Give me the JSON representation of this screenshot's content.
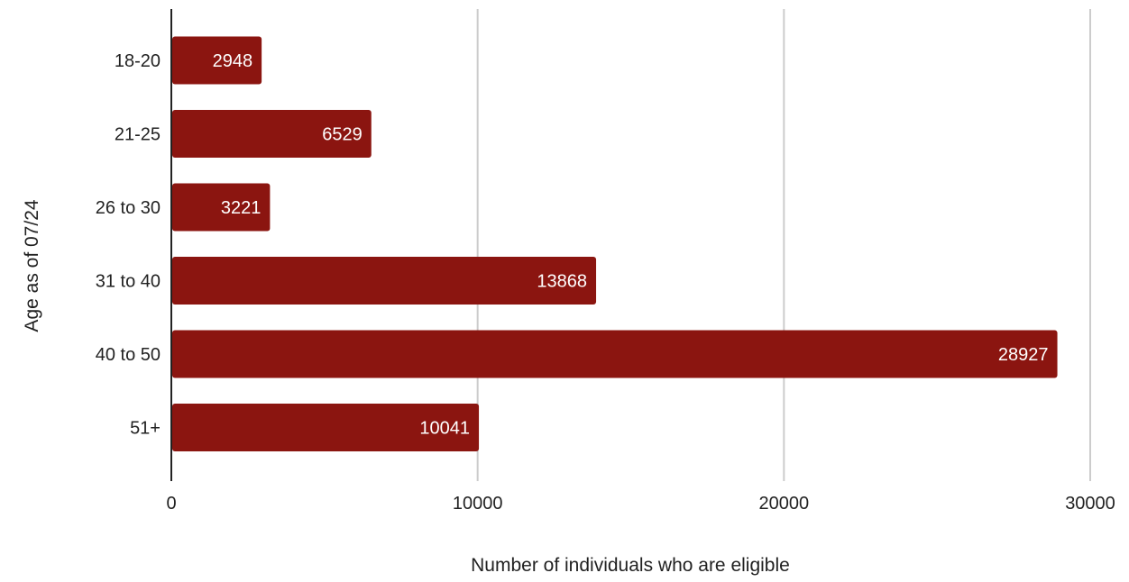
{
  "chart_data": {
    "type": "bar",
    "orientation": "horizontal",
    "title": "",
    "categories": [
      "18-20",
      "21-25",
      "26 to 30",
      "31 to 40",
      "40 to 50",
      "51+"
    ],
    "values": [
      2948,
      6529,
      3221,
      13868,
      28927,
      10041
    ],
    "xlabel": "Number of individuals who are eligible",
    "ylabel": "Age as of 07/24",
    "xlim": [
      0,
      30000
    ],
    "xticks": [
      0,
      10000,
      20000,
      30000
    ],
    "xtick_labels": [
      "0",
      "10000",
      "20000",
      "30000"
    ],
    "grid": "vertical",
    "legend": "none",
    "data_labels": true,
    "colors": {
      "bar": "#8b1510",
      "grid": "#cccccc",
      "axis": "#222222",
      "bar_label": "#ffffff"
    }
  }
}
